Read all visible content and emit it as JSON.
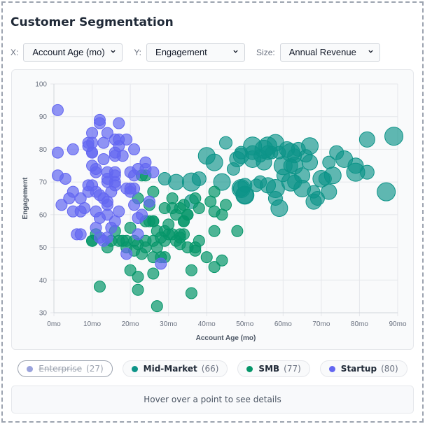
{
  "title": "Customer Segmentation",
  "controls": {
    "x_label": "X:",
    "x_value": "Account Age (mo)",
    "y_label": "Y:",
    "y_value": "Engagement",
    "size_label": "Size:",
    "size_value": "Annual Revenue"
  },
  "legend": [
    {
      "name": "Enterprise",
      "count": "(27)",
      "color": "#9aa3dc",
      "active": false
    },
    {
      "name": "Mid-Market",
      "count": "(66)",
      "color": "#0d9488",
      "active": true
    },
    {
      "name": "SMB",
      "count": "(77)",
      "color": "#059669",
      "active": true
    },
    {
      "name": "Startup",
      "count": "(80)",
      "color": "#6366f1",
      "active": true
    }
  ],
  "details_text": "Hover over a point to see details",
  "chart_data": {
    "type": "scatter",
    "xlabel": "Account Age (mo)",
    "ylabel": "Engagement",
    "xlim": [
      0,
      90
    ],
    "ylim": [
      30,
      100
    ],
    "x_ticks": [
      "0mo",
      "10mo",
      "20mo",
      "30mo",
      "40mo",
      "50mo",
      "60mo",
      "70mo",
      "80mo",
      "90mo"
    ],
    "y_ticks": [
      "30",
      "40",
      "50",
      "60",
      "70",
      "80",
      "90",
      "100"
    ],
    "x_tick_values": [
      0,
      10,
      20,
      30,
      40,
      50,
      60,
      70,
      80,
      90
    ],
    "y_tick_values": [
      30,
      40,
      50,
      60,
      70,
      80,
      90,
      100
    ],
    "grid": true,
    "size_encoding": "Annual Revenue",
    "series": [
      {
        "name": "Startup",
        "color": "#6366f1",
        "size": 1,
        "points": [
          [
            1,
            92
          ],
          [
            12,
            89
          ],
          [
            12,
            88
          ],
          [
            17,
            88
          ],
          [
            10,
            85
          ],
          [
            14,
            85
          ],
          [
            9,
            82
          ],
          [
            10,
            82
          ],
          [
            13,
            82
          ],
          [
            9,
            81
          ],
          [
            16,
            83
          ],
          [
            17,
            83
          ],
          [
            19,
            83
          ],
          [
            17,
            81
          ],
          [
            1,
            79
          ],
          [
            5,
            80
          ],
          [
            10,
            79
          ],
          [
            21,
            80
          ],
          [
            16,
            79
          ],
          [
            16,
            78
          ],
          [
            18,
            78
          ],
          [
            13,
            77
          ],
          [
            24,
            76
          ],
          [
            24,
            74
          ],
          [
            10,
            75
          ],
          [
            11,
            74
          ],
          [
            11,
            73
          ],
          [
            14,
            73
          ],
          [
            16,
            73
          ],
          [
            20,
            73
          ],
          [
            26,
            73
          ],
          [
            1,
            72
          ],
          [
            3,
            71
          ],
          [
            14,
            71
          ],
          [
            16,
            72
          ],
          [
            21,
            72
          ],
          [
            10,
            69
          ],
          [
            14,
            70
          ],
          [
            16,
            69
          ],
          [
            5,
            67
          ],
          [
            9,
            67
          ],
          [
            11,
            67
          ],
          [
            15,
            67
          ],
          [
            19,
            68
          ],
          [
            20,
            68
          ],
          [
            21,
            68
          ],
          [
            4,
            65
          ],
          [
            7,
            65
          ],
          [
            12,
            66
          ],
          [
            13,
            65
          ],
          [
            14,
            64
          ],
          [
            14,
            63
          ],
          [
            2,
            63
          ],
          [
            21,
            63
          ],
          [
            5,
            61
          ],
          [
            7,
            61
          ],
          [
            8,
            62
          ],
          [
            11,
            61
          ],
          [
            14,
            60
          ],
          [
            17,
            61
          ],
          [
            12,
            59
          ],
          [
            22,
            59
          ],
          [
            23,
            60
          ],
          [
            16,
            58
          ],
          [
            11,
            56
          ],
          [
            15,
            56
          ],
          [
            6,
            54
          ],
          [
            7,
            54
          ],
          [
            12,
            53
          ],
          [
            14,
            53
          ],
          [
            22,
            54
          ],
          [
            19,
            48
          ],
          [
            10,
            79
          ],
          [
            16,
            70
          ],
          [
            20,
            67
          ],
          [
            25,
            64
          ],
          [
            22,
            74
          ],
          [
            13,
            52
          ],
          [
            28,
            45
          ],
          [
            9,
            69
          ]
        ]
      },
      {
        "name": "SMB",
        "color": "#059669",
        "size": 1,
        "points": [
          [
            10,
            52
          ],
          [
            12,
            38
          ],
          [
            14,
            50
          ],
          [
            16,
            55
          ],
          [
            17,
            52
          ],
          [
            20,
            56
          ],
          [
            19,
            52
          ],
          [
            19,
            50
          ],
          [
            21,
            52
          ],
          [
            21,
            49
          ],
          [
            20,
            43
          ],
          [
            22,
            41
          ],
          [
            22,
            37
          ],
          [
            24,
            52
          ],
          [
            24,
            50
          ],
          [
            25,
            58
          ],
          [
            26,
            58
          ],
          [
            27,
            55
          ],
          [
            26,
            52
          ],
          [
            27,
            50
          ],
          [
            26,
            47
          ],
          [
            26,
            42
          ],
          [
            27,
            32
          ],
          [
            29,
            55
          ],
          [
            29,
            52
          ],
          [
            29,
            47
          ],
          [
            28,
            47
          ],
          [
            30,
            54
          ],
          [
            31,
            54
          ],
          [
            33,
            54
          ],
          [
            34,
            54
          ],
          [
            33,
            51
          ],
          [
            35,
            50
          ],
          [
            37,
            50
          ],
          [
            37,
            49
          ],
          [
            38,
            52
          ],
          [
            36,
            43
          ],
          [
            36,
            36
          ],
          [
            34,
            58
          ],
          [
            35,
            60
          ],
          [
            23,
            72
          ],
          [
            24,
            72
          ],
          [
            26,
            67
          ],
          [
            22,
            65
          ],
          [
            25,
            63
          ],
          [
            31,
            65
          ],
          [
            37,
            65
          ],
          [
            29,
            62
          ],
          [
            31,
            62
          ],
          [
            33,
            62
          ],
          [
            34,
            63
          ],
          [
            32,
            60
          ],
          [
            35,
            60
          ],
          [
            34,
            58
          ],
          [
            38,
            62
          ],
          [
            42,
            67
          ],
          [
            41,
            64
          ],
          [
            45,
            63
          ],
          [
            42,
            61
          ],
          [
            44,
            60
          ],
          [
            42,
            55
          ],
          [
            48,
            55
          ],
          [
            24,
            58
          ],
          [
            26,
            58
          ],
          [
            40,
            47
          ],
          [
            44,
            46
          ],
          [
            42,
            44
          ],
          [
            11,
            54
          ],
          [
            15,
            52
          ],
          [
            18,
            52
          ],
          [
            22,
            51
          ],
          [
            30,
            57
          ],
          [
            33,
            53
          ],
          [
            10,
            52
          ],
          [
            28,
            53
          ],
          [
            23,
            48
          ],
          [
            32,
            52
          ]
        ]
      },
      {
        "name": "Mid-Market",
        "color": "#0d9488",
        "size": 1.5,
        "points": [
          [
            29,
            71
          ],
          [
            32,
            70
          ],
          [
            36,
            70
          ],
          [
            38,
            71
          ],
          [
            44,
            70
          ],
          [
            47,
            74
          ],
          [
            49,
            68
          ],
          [
            50,
            66
          ],
          [
            36,
            64
          ],
          [
            42,
            76
          ],
          [
            49,
            79
          ],
          [
            49,
            78
          ],
          [
            52,
            81
          ],
          [
            52,
            79
          ],
          [
            52,
            77
          ],
          [
            54,
            78
          ],
          [
            55,
            76
          ],
          [
            56,
            81
          ],
          [
            56,
            79
          ],
          [
            58,
            82
          ],
          [
            57,
            79
          ],
          [
            61,
            80
          ],
          [
            62,
            79
          ],
          [
            63,
            78
          ],
          [
            67,
            81
          ],
          [
            66,
            78
          ],
          [
            67,
            76
          ],
          [
            60,
            75
          ],
          [
            62,
            75
          ],
          [
            63,
            75
          ],
          [
            60,
            72
          ],
          [
            65,
            72
          ],
          [
            62,
            70
          ],
          [
            63,
            70
          ],
          [
            65,
            68
          ],
          [
            68,
            67
          ],
          [
            68,
            64
          ],
          [
            49,
            68
          ],
          [
            50,
            69
          ],
          [
            50,
            66
          ],
          [
            54,
            70
          ],
          [
            56,
            69
          ],
          [
            58,
            68
          ],
          [
            58,
            65
          ],
          [
            59,
            62
          ],
          [
            53,
            69
          ],
          [
            82,
            83
          ],
          [
            89,
            84
          ],
          [
            74,
            79
          ],
          [
            76,
            77
          ],
          [
            72,
            76
          ],
          [
            79,
            75
          ],
          [
            79,
            73
          ],
          [
            82,
            73
          ],
          [
            73,
            72
          ],
          [
            71,
            71
          ],
          [
            72,
            67
          ],
          [
            87,
            67
          ],
          [
            69,
            65
          ],
          [
            40,
            78
          ],
          [
            45,
            82
          ],
          [
            48,
            77
          ],
          [
            55,
            80
          ],
          [
            64,
            80
          ],
          [
            70,
            71
          ],
          [
            59,
            79
          ]
        ]
      }
    ]
  }
}
